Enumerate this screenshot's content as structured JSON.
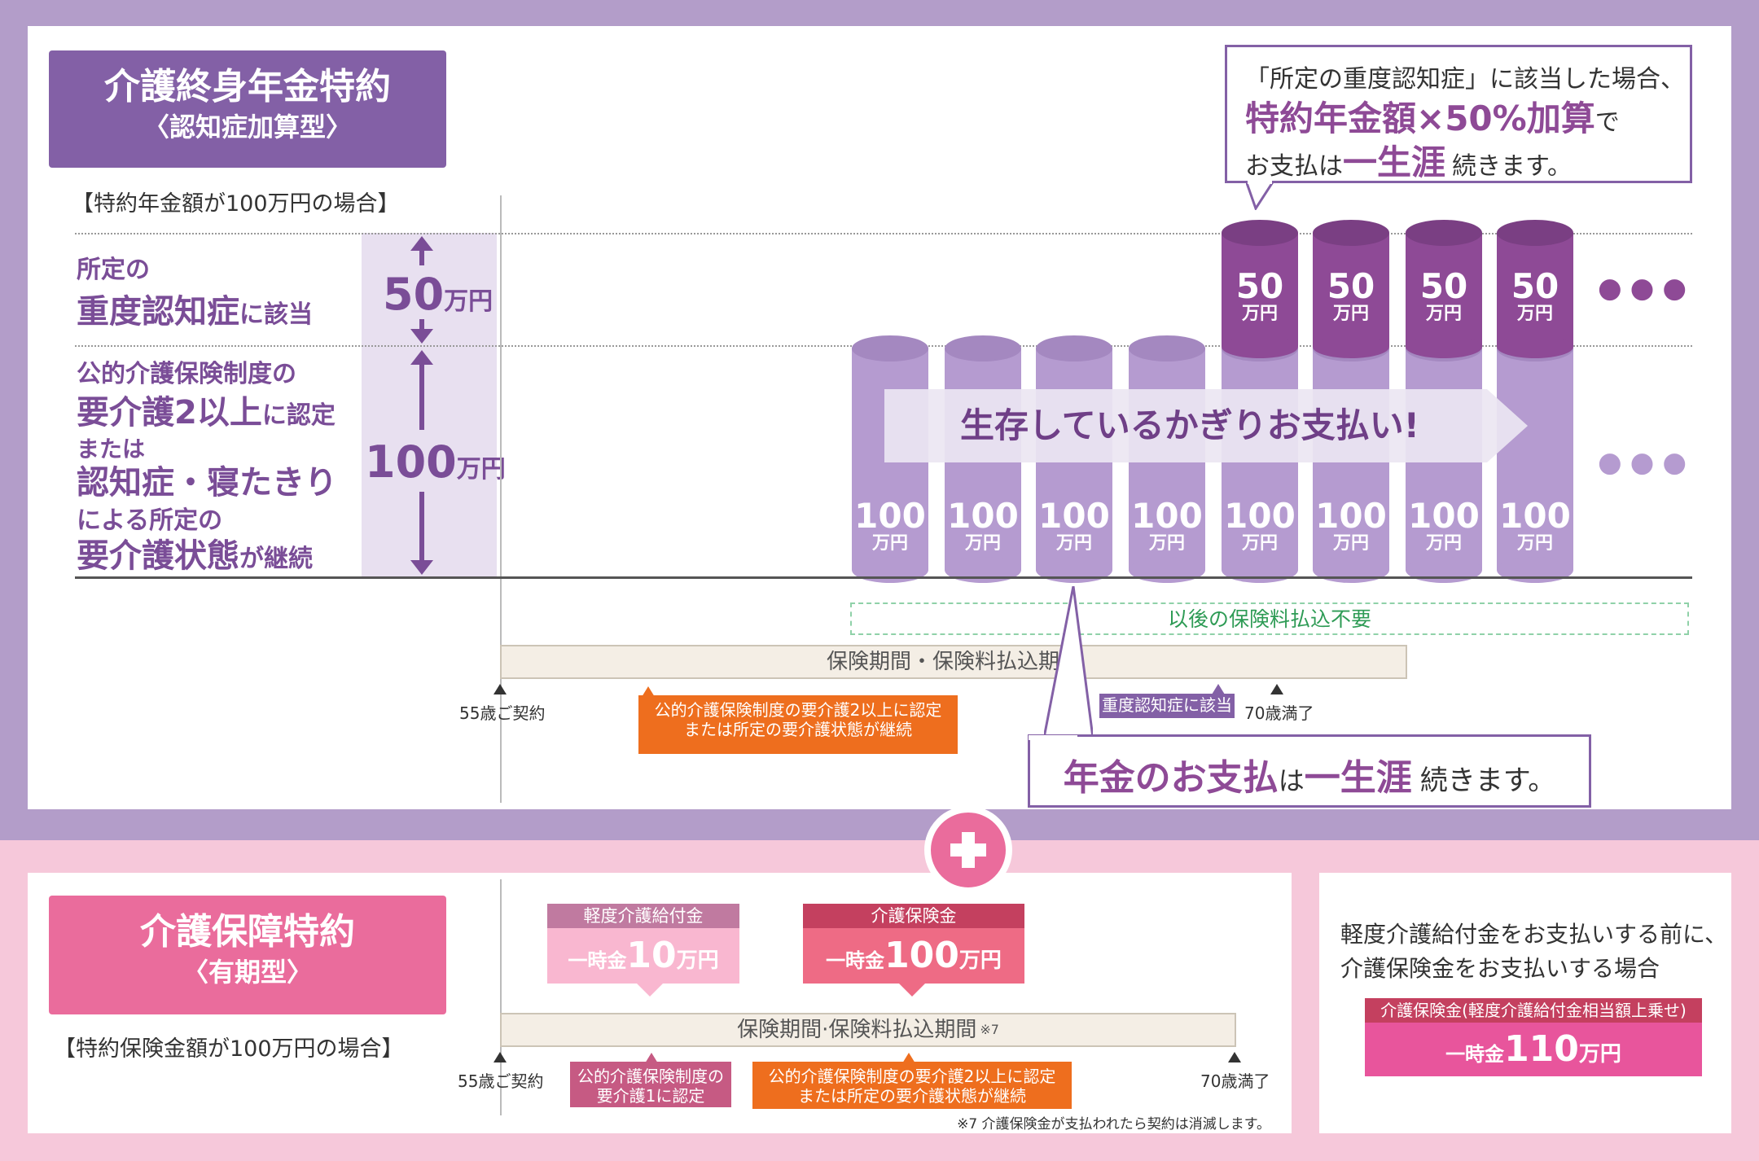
{
  "upper": {
    "title": "介護終身年金特約",
    "subtitle": "〈認知症加算型〉",
    "note": "【特約年金額が100万円の場合】",
    "row1": {
      "line1": "所定の",
      "line2_em": "重度認知症",
      "line2_rest": "に該当",
      "amount_num": "50",
      "amount_unit": "万円"
    },
    "row2": {
      "line1": "公的介護保険制度の",
      "line2_em": "要介護2以上",
      "line2_rest": "に認定",
      "line3": "または",
      "line4_em": "認知症・寝たきり",
      "line5": "による所定の",
      "line6_em": "要介護状態",
      "line6_rest": "が継続",
      "amount_num": "100",
      "amount_unit": "万円"
    },
    "bar_num_top": "50",
    "bar_num_bottom": "100",
    "bar_unit": "万円",
    "arrow_text": "生存しているかぎりお支払い!",
    "dots": "●●●",
    "green_box": "以後の保険料払込不要",
    "period_bar": "保険期間・保険料払込期間",
    "start_label": "55歳ご契約",
    "end_label": "70歳満了",
    "event_orange": {
      "line1": "公的介護保険制度の要介護2以上に認定",
      "line2": "または所定の要介護状態が継続"
    },
    "event_purple": "重度認知症に該当",
    "callout_top": {
      "line1": "「所定の重度認知症」に該当した場合、",
      "line2_em": "特約年金額×50%加算",
      "line2_rest": "で",
      "line3_a": "お支払は",
      "line3_em": "一生涯",
      "line3_rest": "続きます。"
    },
    "callout_bottom": {
      "em1": "年金のお支払",
      "mid": "は",
      "em2": "一生涯",
      "rest": "続きます。"
    }
  },
  "lower": {
    "title": "介護保障特約",
    "subtitle": "〈有期型〉",
    "note": "【特約保険金額が100万円の場合】",
    "benefit1": {
      "head": "軽度介護給付金",
      "prefix": "一時金",
      "num": "10",
      "unit": "万円"
    },
    "benefit2": {
      "head": "介護保険金",
      "prefix": "一時金",
      "num": "100",
      "unit": "万円"
    },
    "period_bar": "保険期間·保険料払込期間",
    "period_mark": "※7",
    "start_label": "55歳ご契約",
    "end_label": "70歳満了",
    "event_pink": {
      "line1": "公的介護保険制度の",
      "line2": "要介護1に認定"
    },
    "event_orange": {
      "line1": "公的介護保険制度の要介護2以上に認定",
      "line2": "または所定の要介護状態が継続"
    },
    "footnote": "※7 介護保険金が支払われたら契約は消滅します。",
    "side": {
      "line1": "軽度介護給付金をお支払いする前に、",
      "line2": "介護保険金をお支払いする場合",
      "head": "介護保険金(軽度介護給付金相当額上乗せ)",
      "prefix": "一時金",
      "num": "110",
      "unit": "万円"
    }
  }
}
